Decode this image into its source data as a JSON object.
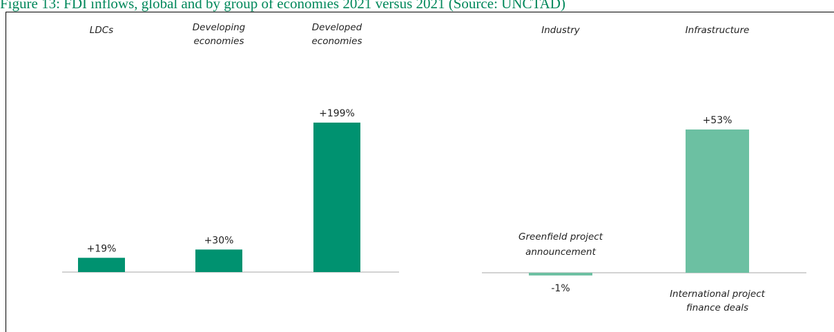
{
  "caption": {
    "text": "Figure 13: FDI inflows, global and by group of economies 2021 versus 2021 (Source: UNCTAD)",
    "color": "#00875a"
  },
  "chart_data": [
    {
      "type": "bar",
      "categories": [
        "LDCs",
        "Developing economies",
        "Developed economies"
      ],
      "values": [
        19,
        30,
        199
      ],
      "value_labels": [
        "+19%",
        "+30%",
        "+199%"
      ],
      "color": "#009270",
      "ylim": [
        -10,
        220
      ]
    },
    {
      "type": "bar",
      "column_headers": [
        "Industry",
        "Infrastructure"
      ],
      "categories": [
        "Greenfield project announcement",
        "International project finance deals"
      ],
      "values": [
        -1,
        53
      ],
      "value_labels": [
        "-1%",
        "+53%"
      ],
      "color": "#6cc0a2",
      "ylim": [
        -3,
        59
      ]
    }
  ]
}
